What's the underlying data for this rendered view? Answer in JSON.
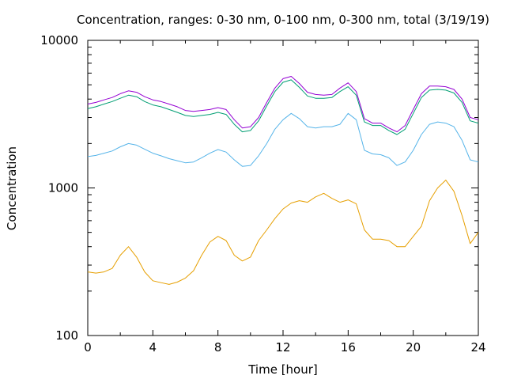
{
  "chart_data": {
    "type": "line",
    "title": "Concentration, ranges: 0-30 nm, 0-100 nm, 0-300 nm, total (3/19/19)",
    "xlabel": "Time [hour]",
    "ylabel": "Concentration",
    "xlim": [
      0,
      24
    ],
    "ylim": [
      100,
      10000
    ],
    "yscale": "log",
    "x_ticks": [
      "0",
      "4",
      "8",
      "12",
      "16",
      "20",
      "24"
    ],
    "y_ticks": [
      "100",
      "1000",
      "10000"
    ],
    "grid": false,
    "legend": "none",
    "series": [
      {
        "color": "#e69f00",
        "x": [
          0,
          0.5,
          1,
          1.5,
          2,
          2.5,
          3,
          3.5,
          4,
          4.5,
          5,
          5.5,
          6,
          6.5,
          7,
          7.5,
          8,
          8.5,
          9,
          9.5,
          10,
          10.5,
          11,
          11.5,
          12,
          12.5,
          13,
          13.5,
          14,
          14.5,
          15,
          15.5,
          16,
          16.5,
          17,
          17.5,
          18,
          18.5,
          19,
          19.5,
          20,
          20.5,
          21,
          21.5,
          22,
          22.5,
          23,
          23.5,
          24
        ],
        "y": [
          270,
          265,
          270,
          285,
          350,
          400,
          340,
          270,
          235,
          228,
          222,
          230,
          245,
          275,
          350,
          430,
          470,
          440,
          350,
          320,
          340,
          440,
          520,
          620,
          720,
          790,
          820,
          800,
          870,
          920,
          850,
          800,
          830,
          780,
          520,
          450,
          450,
          440,
          400,
          400,
          470,
          550,
          820,
          1000,
          1130,
          950,
          650,
          420,
          500
        ]
      },
      {
        "color": "#56b4e9",
        "x": [
          0,
          0.5,
          1,
          1.5,
          2,
          2.5,
          3,
          3.5,
          4,
          4.5,
          5,
          5.5,
          6,
          6.5,
          7,
          7.5,
          8,
          8.5,
          9,
          9.5,
          10,
          10.5,
          11,
          11.5,
          12,
          12.5,
          13,
          13.5,
          14,
          14.5,
          15,
          15.5,
          16,
          16.5,
          17,
          17.5,
          18,
          18.5,
          19,
          19.5,
          20,
          20.5,
          21,
          21.5,
          22,
          22.5,
          23,
          23.5,
          24
        ],
        "y": [
          1630,
          1660,
          1720,
          1780,
          1900,
          2000,
          1950,
          1830,
          1720,
          1650,
          1580,
          1530,
          1480,
          1500,
          1600,
          1720,
          1820,
          1750,
          1550,
          1400,
          1420,
          1650,
          2000,
          2500,
          2900,
          3200,
          2950,
          2600,
          2550,
          2600,
          2600,
          2700,
          3200,
          2900,
          1800,
          1700,
          1680,
          1600,
          1420,
          1500,
          1800,
          2300,
          2700,
          2800,
          2750,
          2600,
          2100,
          1550,
          1500
        ]
      },
      {
        "color": "#009e73",
        "x": [
          0,
          0.5,
          1,
          1.5,
          2,
          2.5,
          3,
          3.5,
          4,
          4.5,
          5,
          5.5,
          6,
          6.5,
          7,
          7.5,
          8,
          8.5,
          9,
          9.5,
          10,
          10.5,
          11,
          11.5,
          12,
          12.5,
          13,
          13.5,
          14,
          14.5,
          15,
          15.5,
          16,
          16.5,
          17,
          17.5,
          18,
          18.5,
          19,
          19.5,
          20,
          20.5,
          21,
          21.5,
          22,
          22.5,
          23,
          23.5,
          24
        ],
        "y": [
          3450,
          3550,
          3700,
          3850,
          4050,
          4250,
          4150,
          3850,
          3650,
          3550,
          3400,
          3250,
          3100,
          3050,
          3100,
          3150,
          3250,
          3150,
          2700,
          2400,
          2450,
          2850,
          3600,
          4500,
          5200,
          5400,
          4800,
          4200,
          4050,
          4050,
          4100,
          4500,
          4850,
          4250,
          2800,
          2650,
          2650,
          2450,
          2300,
          2500,
          3200,
          4100,
          4600,
          4650,
          4600,
          4400,
          3800,
          2850,
          2750
        ]
      },
      {
        "color": "#9400d3",
        "x": [
          0,
          0.5,
          1,
          1.5,
          2,
          2.5,
          3,
          3.5,
          4,
          4.5,
          5,
          5.5,
          6,
          6.5,
          7,
          7.5,
          8,
          8.5,
          9,
          9.5,
          10,
          10.5,
          11,
          11.5,
          12,
          12.5,
          13,
          13.5,
          14,
          14.5,
          15,
          15.5,
          16,
          16.5,
          17,
          17.5,
          18,
          18.5,
          19,
          19.5,
          20,
          20.5,
          21,
          21.5,
          22,
          22.5,
          23,
          23.5,
          24
        ],
        "y": [
          3700,
          3800,
          3950,
          4100,
          4350,
          4550,
          4450,
          4150,
          3950,
          3850,
          3700,
          3550,
          3350,
          3300,
          3350,
          3400,
          3500,
          3400,
          2900,
          2550,
          2600,
          3000,
          3800,
          4750,
          5500,
          5700,
          5100,
          4450,
          4300,
          4250,
          4300,
          4750,
          5150,
          4500,
          2950,
          2750,
          2750,
          2550,
          2400,
          2650,
          3400,
          4350,
          4900,
          4900,
          4850,
          4650,
          4000,
          3000,
          2900
        ]
      }
    ]
  }
}
